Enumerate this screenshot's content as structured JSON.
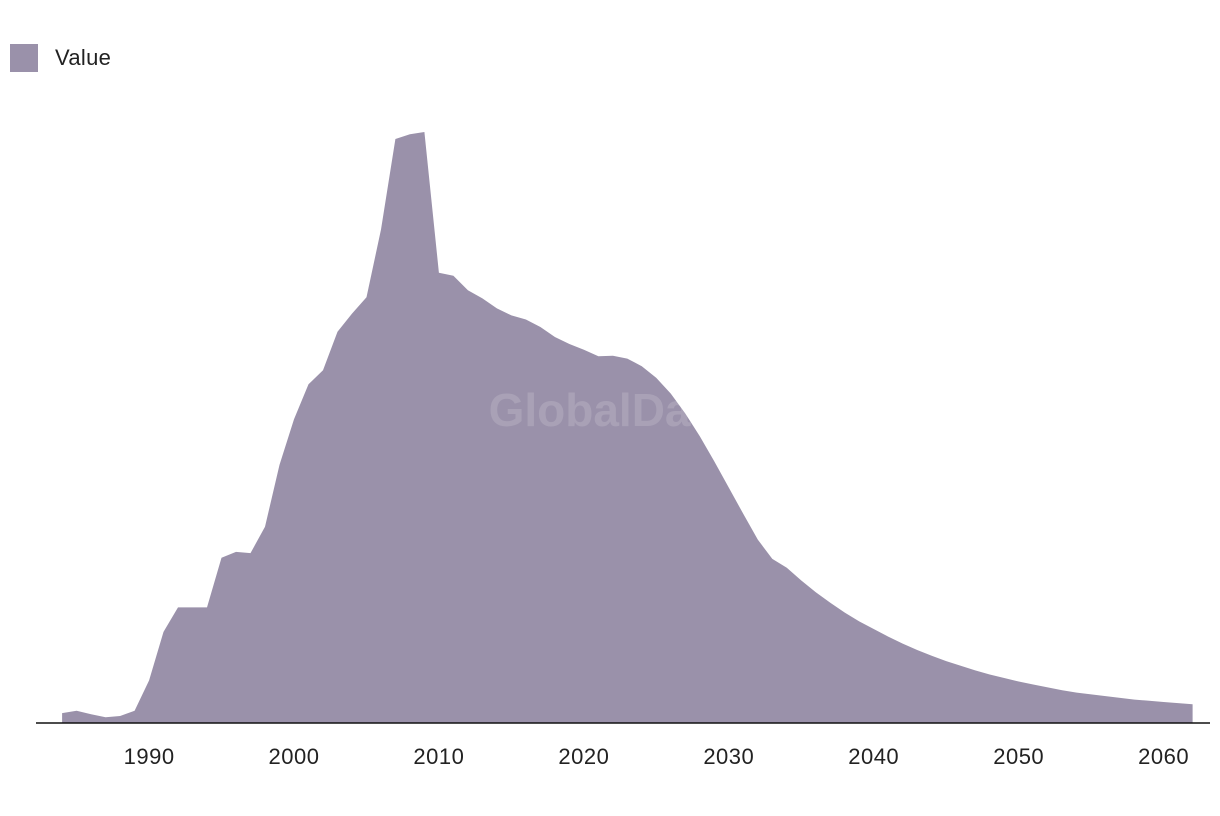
{
  "colors": {
    "area": "#9a91aa",
    "axis": "#111111",
    "text": "#222222",
    "background": "#ffffff"
  },
  "legend": {
    "label": "Value",
    "placement": "top-left"
  },
  "watermark": {
    "text": "GlobalData"
  },
  "chart_data": {
    "type": "area",
    "title": "",
    "xlabel": "",
    "ylabel": "",
    "grid": false,
    "legend_placement": "top-left",
    "y_axis_labels_shown": false,
    "xlim": [
      1982.2,
      2063.2
    ],
    "ylim": [
      0,
      100
    ],
    "xticks": [
      1990,
      2000,
      2010,
      2020,
      2030,
      2040,
      2050,
      2060
    ],
    "series": [
      {
        "name": "Value",
        "x": [
          1984,
          1985,
          1986,
          1987,
          1988,
          1989,
          1990,
          1991,
          1992,
          1993,
          1994,
          1995,
          1996,
          1997,
          1998,
          1999,
          2000,
          2001,
          2002,
          2003,
          2004,
          2005,
          2006,
          2007,
          2008,
          2009,
          2010,
          2011,
          2012,
          2013,
          2014,
          2015,
          2016,
          2017,
          2018,
          2019,
          2020,
          2021,
          2022,
          2023,
          2024,
          2025,
          2026,
          2027,
          2028,
          2029,
          2030,
          2031,
          2032,
          2033,
          2034,
          2035,
          2036,
          2037,
          2038,
          2039,
          2040,
          2041,
          2042,
          2043,
          2044,
          2045,
          2046,
          2047,
          2048,
          2049,
          2050,
          2051,
          2052,
          2053,
          2054,
          2055,
          2056,
          2057,
          2058,
          2059,
          2060,
          2061,
          2062
        ],
        "values": [
          1.7,
          2.1,
          1.5,
          1.0,
          1.2,
          2.1,
          7.3,
          15.6,
          19.8,
          19.8,
          19.8,
          28.3,
          29.3,
          29.1,
          33.6,
          44.2,
          52.0,
          58.0,
          60.4,
          67.0,
          70.1,
          72.9,
          84.5,
          100.0,
          100.8,
          101.2,
          77.1,
          76.6,
          74.1,
          72.7,
          71.0,
          69.8,
          69.1,
          67.8,
          66.1,
          64.9,
          63.9,
          62.8,
          62.9,
          62.4,
          61.1,
          59.1,
          56.4,
          53.0,
          49.1,
          44.8,
          40.3,
          35.8,
          31.4,
          28.1,
          26.6,
          24.4,
          22.4,
          20.6,
          18.9,
          17.4,
          16.1,
          14.8,
          13.6,
          12.5,
          11.5,
          10.6,
          9.8,
          9.0,
          8.3,
          7.7,
          7.1,
          6.6,
          6.1,
          5.6,
          5.2,
          4.9,
          4.6,
          4.3,
          4.0,
          3.8,
          3.6,
          3.4,
          3.2
        ]
      }
    ]
  }
}
